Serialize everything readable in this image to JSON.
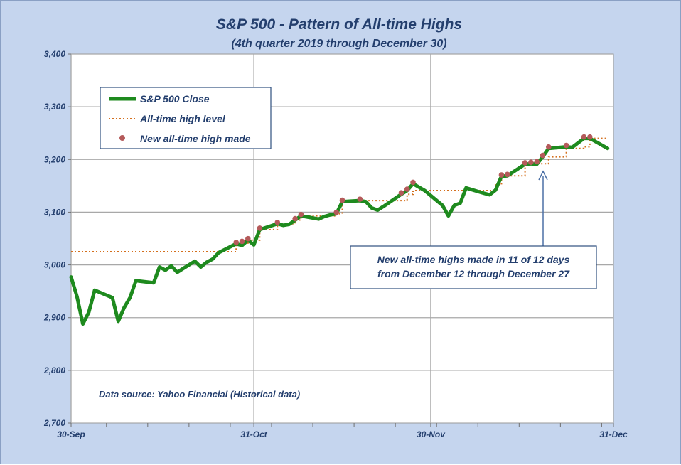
{
  "chart_data": {
    "type": "line",
    "title": "S&P 500 - Pattern of All-time Highs",
    "subtitle": "(4th quarter 2019 through December 30)",
    "xlabel": "",
    "ylabel": "",
    "x_range": [
      "2019-09-30",
      "2019-12-31"
    ],
    "ylim": [
      2700,
      3400
    ],
    "y_ticks": [
      2700,
      2800,
      2900,
      3000,
      3100,
      3200,
      3300,
      3400
    ],
    "y_tick_labels": [
      "2,700",
      "2,800",
      "2,900",
      "3,000",
      "3,100",
      "3,200",
      "3,300",
      "3,400"
    ],
    "x_ticks": [
      "2019-09-30",
      "2019-10-31",
      "2019-11-30",
      "2019-12-31"
    ],
    "x_tick_labels": [
      "30-Sep",
      "31-Oct",
      "30-Nov",
      "31-Dec"
    ],
    "grid": true,
    "legend_position": "top-left",
    "series": [
      {
        "name": "S&P 500 Close",
        "style": "line",
        "color": "#1e8a1e",
        "x": [
          "2019-09-30",
          "2019-10-01",
          "2019-10-02",
          "2019-10-03",
          "2019-10-04",
          "2019-10-07",
          "2019-10-08",
          "2019-10-09",
          "2019-10-10",
          "2019-10-11",
          "2019-10-14",
          "2019-10-15",
          "2019-10-16",
          "2019-10-17",
          "2019-10-18",
          "2019-10-21",
          "2019-10-22",
          "2019-10-23",
          "2019-10-24",
          "2019-10-25",
          "2019-10-28",
          "2019-10-29",
          "2019-10-30",
          "2019-10-31",
          "2019-11-01",
          "2019-11-04",
          "2019-11-05",
          "2019-11-06",
          "2019-11-07",
          "2019-11-08",
          "2019-11-11",
          "2019-11-12",
          "2019-11-13",
          "2019-11-14",
          "2019-11-15",
          "2019-11-18",
          "2019-11-19",
          "2019-11-20",
          "2019-11-21",
          "2019-11-22",
          "2019-11-25",
          "2019-11-26",
          "2019-11-27",
          "2019-11-29",
          "2019-12-02",
          "2019-12-03",
          "2019-12-04",
          "2019-12-05",
          "2019-12-06",
          "2019-12-09",
          "2019-12-10",
          "2019-12-11",
          "2019-12-12",
          "2019-12-13",
          "2019-12-16",
          "2019-12-17",
          "2019-12-18",
          "2019-12-19",
          "2019-12-20",
          "2019-12-23",
          "2019-12-24",
          "2019-12-26",
          "2019-12-27",
          "2019-12-30"
        ],
        "y": [
          2977,
          2940,
          2888,
          2910,
          2952,
          2938,
          2893,
          2919,
          2938,
          2970,
          2966,
          2996,
          2990,
          2998,
          2986,
          3007,
          2996,
          3005,
          3011,
          3023,
          3040,
          3037,
          3047,
          3038,
          3067,
          3078,
          3075,
          3077,
          3085,
          3093,
          3087,
          3092,
          3095,
          3097,
          3120,
          3122,
          3120,
          3108,
          3104,
          3111,
          3134,
          3141,
          3154,
          3141,
          3113,
          3093,
          3113,
          3117,
          3146,
          3136,
          3133,
          3142,
          3168,
          3169,
          3191,
          3192,
          3191,
          3205,
          3221,
          3224,
          3223,
          3240,
          3240,
          3221
        ]
      },
      {
        "name": "All-time high level",
        "style": "dotted-step",
        "color": "#d4701e",
        "x": [
          "2019-09-30",
          "2019-10-25",
          "2019-10-28",
          "2019-10-30",
          "2019-11-01",
          "2019-11-04",
          "2019-11-07",
          "2019-11-08",
          "2019-11-14",
          "2019-11-15",
          "2019-11-18",
          "2019-11-25",
          "2019-11-26",
          "2019-11-27",
          "2019-12-11",
          "2019-12-12",
          "2019-12-13",
          "2019-12-16",
          "2019-12-17",
          "2019-12-19",
          "2019-12-20",
          "2019-12-23",
          "2019-12-26",
          "2019-12-27",
          "2019-12-30"
        ],
        "y": [
          3025,
          3025,
          3040,
          3047,
          3067,
          3078,
          3085,
          3093,
          3097,
          3120,
          3122,
          3122,
          3134,
          3141,
          3154,
          3168,
          3169,
          3191,
          3192,
          3192,
          3205,
          3221,
          3224,
          3240,
          3240
        ]
      },
      {
        "name": "New all-time high made",
        "style": "markers",
        "color": "#b45a5a",
        "x": [
          "2019-10-28",
          "2019-10-29",
          "2019-10-30",
          "2019-11-01",
          "2019-11-04",
          "2019-11-07",
          "2019-11-08",
          "2019-11-14",
          "2019-11-15",
          "2019-11-18",
          "2019-11-25",
          "2019-11-26",
          "2019-11-27",
          "2019-12-12",
          "2019-12-13",
          "2019-12-16",
          "2019-12-17",
          "2019-12-18",
          "2019-12-19",
          "2019-12-20",
          "2019-12-23",
          "2019-12-26",
          "2019-12-27"
        ],
        "y": [
          3040,
          3042,
          3047,
          3067,
          3078,
          3085,
          3093,
          3097,
          3120,
          3122,
          3134,
          3141,
          3154,
          3168,
          3169,
          3191,
          3192,
          3193,
          3205,
          3221,
          3224,
          3240,
          3240
        ]
      }
    ],
    "annotations": [
      {
        "lines": [
          "New all-time highs made in 11 of 12 days",
          "from December 12 through December 27"
        ]
      },
      {
        "lines": [
          "Data source: Yahoo Financial (Historical data)"
        ]
      }
    ]
  }
}
